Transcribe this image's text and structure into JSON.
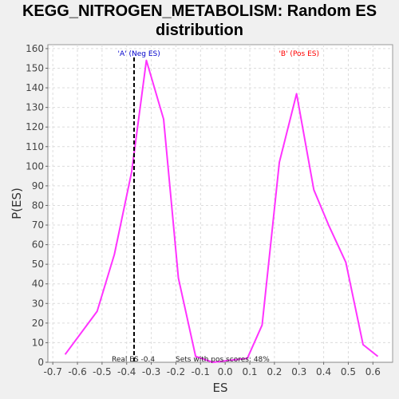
{
  "chart_data": {
    "type": "line",
    "title": "KEGG_NITROGEN_METABOLISM: Random ES distribution",
    "xlabel": "ES",
    "ylabel": "P(ES)",
    "xlim": [
      -0.72,
      0.68
    ],
    "ylim": [
      0,
      162
    ],
    "xticks": [
      -0.7,
      -0.6,
      -0.5,
      -0.4,
      -0.3,
      -0.2,
      -0.1,
      0.0,
      0.1,
      0.2,
      0.3,
      0.4,
      0.5,
      0.6
    ],
    "yticks": [
      0,
      10,
      20,
      30,
      40,
      50,
      60,
      70,
      80,
      90,
      100,
      110,
      120,
      130,
      140,
      150,
      160
    ],
    "grid": true,
    "series": [
      {
        "color": "#ff33ff",
        "x": [
          -0.65,
          -0.52,
          -0.45,
          -0.38,
          -0.32,
          -0.25,
          -0.19,
          -0.12,
          -0.05,
          0.02,
          0.09,
          0.15,
          0.22,
          0.29,
          0.36,
          0.42,
          0.49,
          0.56,
          0.62
        ],
        "y": [
          4,
          26,
          55,
          97,
          154,
          124,
          43,
          3,
          0,
          1,
          2,
          19,
          102,
          137,
          88,
          70,
          51,
          9,
          3
        ]
      }
    ],
    "vline": {
      "x": -0.37,
      "style": "dashed",
      "color": "#000000"
    },
    "annotations": {
      "neg_label": "'A' (Neg ES)",
      "pos_label": "'B' (Pos ES)",
      "neg_color": "#0000cc",
      "pos_color": "#ff0000",
      "real_es": "Real ES -0.4",
      "pos_scores": "Sets with pos scores: 48%"
    }
  }
}
